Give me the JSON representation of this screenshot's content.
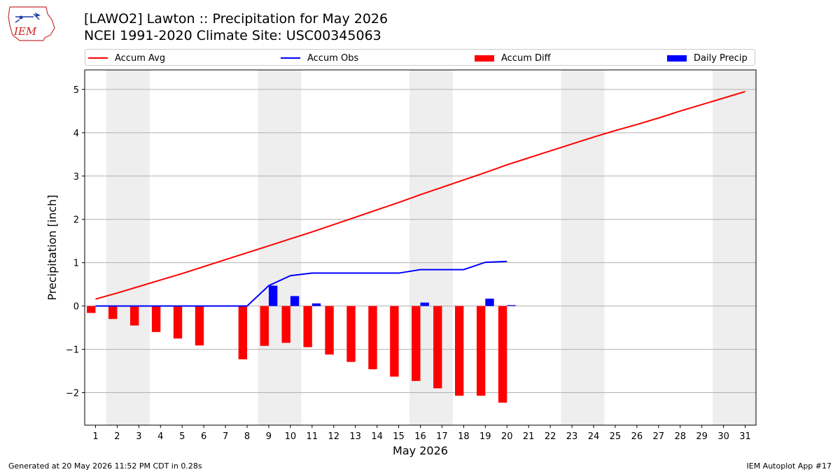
{
  "title_line1": "[LAWO2] Lawton :: Precipitation for May 2026",
  "title_line2": "NCEI 1991-2020 Climate Site: USC00345063",
  "footer_left": "Generated at 20 May 2026 11:52 PM CDT in 0.28s",
  "footer_right": "IEM Autoplot App #17",
  "logo_text": "IEM",
  "legend": [
    {
      "label": "Accum Avg",
      "color": "#ff0000",
      "kind": "line"
    },
    {
      "label": "Accum Obs",
      "color": "#0000ff",
      "kind": "line"
    },
    {
      "label": "Accum Diff",
      "color": "#ff0000",
      "kind": "bar"
    },
    {
      "label": "Daily Precip",
      "color": "#0000ff",
      "kind": "bar"
    }
  ],
  "chart_data": {
    "type": "bar",
    "xlabel": "May 2026",
    "ylabel": "Precipitation [inch]",
    "ylim": [
      -2.75,
      5.45
    ],
    "xlim": [
      0.5,
      31.5
    ],
    "yticks": [
      -2,
      -1,
      0,
      1,
      2,
      3,
      4,
      5
    ],
    "ytick_labels": [
      "−2",
      "−1",
      "0",
      "1",
      "2",
      "3",
      "4",
      "5"
    ],
    "xticks": [
      1,
      2,
      3,
      4,
      5,
      6,
      7,
      8,
      9,
      10,
      11,
      12,
      13,
      14,
      15,
      16,
      17,
      18,
      19,
      20,
      21,
      22,
      23,
      24,
      25,
      26,
      27,
      28,
      29,
      30,
      31
    ],
    "grid": "horizontal",
    "weekend_shading": [
      [
        1.5,
        3.5
      ],
      [
        8.5,
        10.5
      ],
      [
        15.5,
        17.5
      ],
      [
        22.5,
        24.5
      ],
      [
        29.5,
        31.5
      ]
    ],
    "series": [
      {
        "name": "Accum Avg",
        "type": "line",
        "color": "#ff0000",
        "x": [
          1,
          2,
          3,
          4,
          5,
          6,
          7,
          8,
          9,
          10,
          11,
          12,
          13,
          14,
          15,
          16,
          17,
          18,
          19,
          20,
          21,
          22,
          23,
          24,
          25,
          26,
          27,
          28,
          29,
          30,
          31
        ],
        "values": [
          0.16,
          0.3,
          0.45,
          0.6,
          0.75,
          0.91,
          1.07,
          1.23,
          1.39,
          1.55,
          1.71,
          1.88,
          2.05,
          2.22,
          2.39,
          2.57,
          2.74,
          2.91,
          3.08,
          3.26,
          3.42,
          3.58,
          3.74,
          3.9,
          4.05,
          4.19,
          4.34,
          4.5,
          4.65,
          4.8,
          4.95
        ]
      },
      {
        "name": "Accum Obs",
        "type": "line",
        "color": "#0000ff",
        "x": [
          1,
          2,
          3,
          4,
          5,
          6,
          7,
          8,
          9,
          10,
          11,
          12,
          13,
          14,
          15,
          16,
          17,
          18,
          19,
          20
        ],
        "values": [
          0,
          0,
          0,
          0,
          0,
          0,
          0,
          0,
          0.47,
          0.7,
          0.76,
          0.76,
          0.76,
          0.76,
          0.76,
          0.84,
          0.84,
          0.84,
          1.01,
          1.03
        ]
      },
      {
        "name": "Accum Diff",
        "type": "bar",
        "color": "#ff0000",
        "x": [
          1,
          2,
          3,
          4,
          5,
          6,
          8,
          9,
          10,
          11,
          12,
          13,
          14,
          15,
          16,
          17,
          18,
          19,
          20
        ],
        "values": [
          -0.16,
          -0.3,
          -0.45,
          -0.6,
          -0.75,
          -0.91,
          -1.23,
          -0.92,
          -0.85,
          -0.95,
          -1.12,
          -1.29,
          -1.46,
          -1.63,
          -1.73,
          -1.9,
          -2.07,
          -2.07,
          -2.23
        ]
      },
      {
        "name": "Daily Precip",
        "type": "bar",
        "color": "#0000ff",
        "x": [
          9,
          10,
          11,
          16,
          19,
          20
        ],
        "values": [
          0.47,
          0.23,
          0.06,
          0.08,
          0.17,
          0.02
        ]
      }
    ]
  }
}
